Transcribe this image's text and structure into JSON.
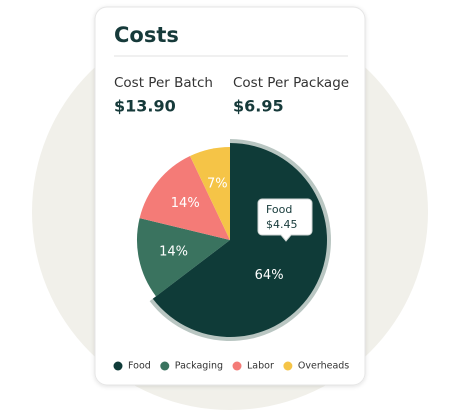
{
  "card": {
    "title": "Costs",
    "metrics": [
      {
        "label": "Cost Per Batch",
        "value": "$13.90"
      },
      {
        "label": "Cost Per Package",
        "value": "$6.95"
      }
    ]
  },
  "chart_data": {
    "type": "pie",
    "categories": [
      "Food",
      "Packaging",
      "Labor",
      "Overheads"
    ],
    "values": [
      64,
      14,
      14,
      7
    ],
    "value_labels": [
      "64%",
      "14%",
      "14%",
      "7%"
    ],
    "colors": [
      "#0f3b38",
      "#3a735f",
      "#f47b77",
      "#f5c447"
    ],
    "tooltip": {
      "label": "Food",
      "value": "$4.45"
    }
  }
}
